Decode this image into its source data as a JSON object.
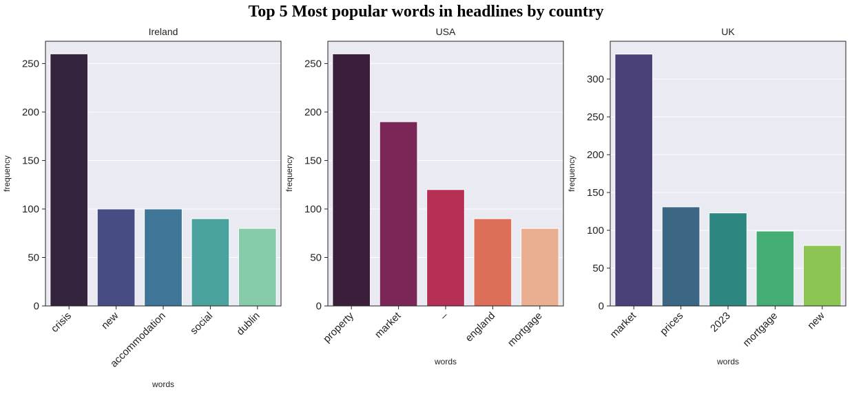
{
  "title": "Top 5 Most popular words in headlines by country",
  "chart_data": [
    {
      "type": "bar",
      "title": "Ireland",
      "xlabel": "words",
      "ylabel": "frequency",
      "categories": [
        "crisis",
        "new",
        "accommodation",
        "social",
        "dublin"
      ],
      "values": [
        260,
        100,
        100,
        90,
        80
      ],
      "colors": [
        "#35243e",
        "#474d82",
        "#3f7698",
        "#4aa29e",
        "#88cbab"
      ],
      "ylim": [
        0,
        273
      ],
      "yticks": [
        0,
        50,
        100,
        150,
        200,
        250
      ],
      "grid": true
    },
    {
      "type": "bar",
      "title": "USA",
      "xlabel": "words",
      "ylabel": "frequency",
      "categories": [
        "property",
        "market",
        "–",
        "england",
        "mortgage"
      ],
      "values": [
        260,
        190,
        120,
        90,
        80
      ],
      "colors": [
        "#3b1e39",
        "#7a2657",
        "#b53054",
        "#dd6e58",
        "#eaaf90"
      ],
      "ylim": [
        0,
        273
      ],
      "yticks": [
        0,
        50,
        100,
        150,
        200,
        250
      ],
      "grid": true
    },
    {
      "type": "bar",
      "title": "UK",
      "xlabel": "words",
      "ylabel": "frequency",
      "categories": [
        "market",
        "prices",
        "2023",
        "mortgage",
        "new"
      ],
      "values": [
        333,
        131,
        123,
        99,
        80
      ],
      "colors": [
        "#4a4179",
        "#3b6684",
        "#2d8780",
        "#43ad73",
        "#8cc554"
      ],
      "ylim": [
        0,
        350
      ],
      "yticks": [
        0,
        50,
        100,
        150,
        200,
        250,
        300
      ],
      "grid": true
    }
  ]
}
